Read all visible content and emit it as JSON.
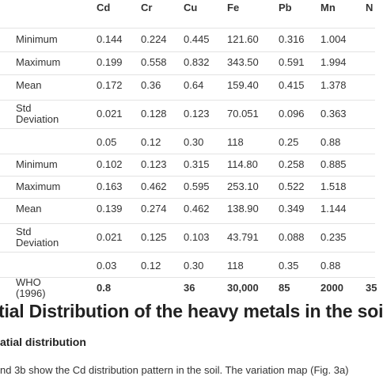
{
  "table": {
    "header": [
      "Cd",
      "Cr",
      "Cu",
      "Fe",
      "Pb",
      "Mn",
      "N"
    ],
    "rows": [
      {
        "label": "Minimum",
        "cells": [
          "0.144",
          "0.224",
          "0.445",
          "121.60",
          "0.316",
          "1.004",
          null
        ]
      },
      {
        "label": "Maximum",
        "cells": [
          "0.199",
          "0.558",
          "0.832",
          "343.50",
          "0.591",
          "1.994",
          null
        ]
      },
      {
        "label": "Mean",
        "cells": [
          "0.172",
          "0.36",
          "0.64",
          "159.40",
          "0.415",
          "1.378",
          null
        ]
      },
      {
        "label": "Std Deviation",
        "cells": [
          "0.021",
          "0.128",
          "0.123",
          "70.051",
          "0.096",
          "0.363",
          null
        ]
      },
      {
        "label": null,
        "cells": [
          "0.05",
          "0.12",
          "0.30",
          "118",
          "0.25",
          "0.88",
          null
        ]
      },
      {
        "label": "Minimum",
        "cells": [
          "0.102",
          "0.123",
          "0.315",
          "114.80",
          "0.258",
          "0.885",
          null
        ]
      },
      {
        "label": "Maximum",
        "cells": [
          "0.163",
          "0.462",
          "0.595",
          "253.10",
          "0.522",
          "1.518",
          null
        ]
      },
      {
        "label": "Mean",
        "cells": [
          "0.139",
          "0.274",
          "0.462",
          "138.90",
          "0.349",
          "1.144",
          null
        ]
      },
      {
        "label": "Std Deviation",
        "cells": [
          "0.021",
          "0.125",
          "0.103",
          "43.791",
          "0.088",
          "0.235",
          null
        ]
      },
      {
        "label": null,
        "cells": [
          "0.03",
          "0.12",
          "0.30",
          "118",
          "0.35",
          "0.88",
          null
        ]
      },
      {
        "label": "WHO (1996)",
        "cells": [
          "0.8",
          null,
          "36",
          "30,000",
          "85",
          "2000",
          "35"
        ],
        "bold_values": true
      }
    ]
  },
  "heading": "tial Distribution of the heavy metals in the soi",
  "subheading": "atial distribution",
  "paragraph": "nd 3b show the Cd distribution pattern in the soil. The variation map (Fig. 3a)"
}
